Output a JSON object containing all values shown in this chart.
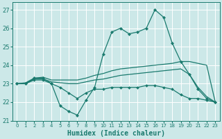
{
  "xlabel": "Humidex (Indice chaleur)",
  "bg_color": "#cce8e8",
  "grid_color": "#ffffff",
  "line_color": "#1a7a6e",
  "xlim": [
    -0.5,
    23.5
  ],
  "ylim": [
    21.0,
    27.4
  ],
  "yticks": [
    21,
    22,
    23,
    24,
    25,
    26,
    27
  ],
  "xticks": [
    0,
    1,
    2,
    3,
    4,
    5,
    6,
    7,
    8,
    9,
    10,
    11,
    12,
    13,
    14,
    15,
    16,
    17,
    18,
    19,
    20,
    21,
    22,
    23
  ],
  "hours": [
    0,
    1,
    2,
    3,
    4,
    5,
    6,
    7,
    8,
    9,
    10,
    11,
    12,
    13,
    14,
    15,
    16,
    17,
    18,
    19,
    20,
    21,
    22,
    23
  ],
  "line_main": [
    23.0,
    23.0,
    23.3,
    23.3,
    23.0,
    21.8,
    21.5,
    21.3,
    22.1,
    22.8,
    24.6,
    25.8,
    26.0,
    25.7,
    25.8,
    26.0,
    27.0,
    26.6,
    25.2,
    24.2,
    23.5,
    22.7,
    22.2,
    22.0
  ],
  "line_upper": [
    23.0,
    23.05,
    23.3,
    23.35,
    23.2,
    23.2,
    23.2,
    23.2,
    23.3,
    23.45,
    23.55,
    23.7,
    23.8,
    23.85,
    23.9,
    23.95,
    24.0,
    24.05,
    24.1,
    24.2,
    24.2,
    24.1,
    24.0,
    22.0
  ],
  "line_mid": [
    23.0,
    23.0,
    23.25,
    23.25,
    23.1,
    23.05,
    23.0,
    23.0,
    23.1,
    23.2,
    23.25,
    23.35,
    23.45,
    23.5,
    23.55,
    23.6,
    23.65,
    23.7,
    23.75,
    23.8,
    23.5,
    22.8,
    22.3,
    22.0
  ],
  "line_lower": [
    23.0,
    23.0,
    23.2,
    23.2,
    23.0,
    22.8,
    22.5,
    22.2,
    22.5,
    22.7,
    22.7,
    22.8,
    22.8,
    22.8,
    22.8,
    22.9,
    22.9,
    22.8,
    22.7,
    22.4,
    22.2,
    22.2,
    22.1,
    22.0
  ]
}
